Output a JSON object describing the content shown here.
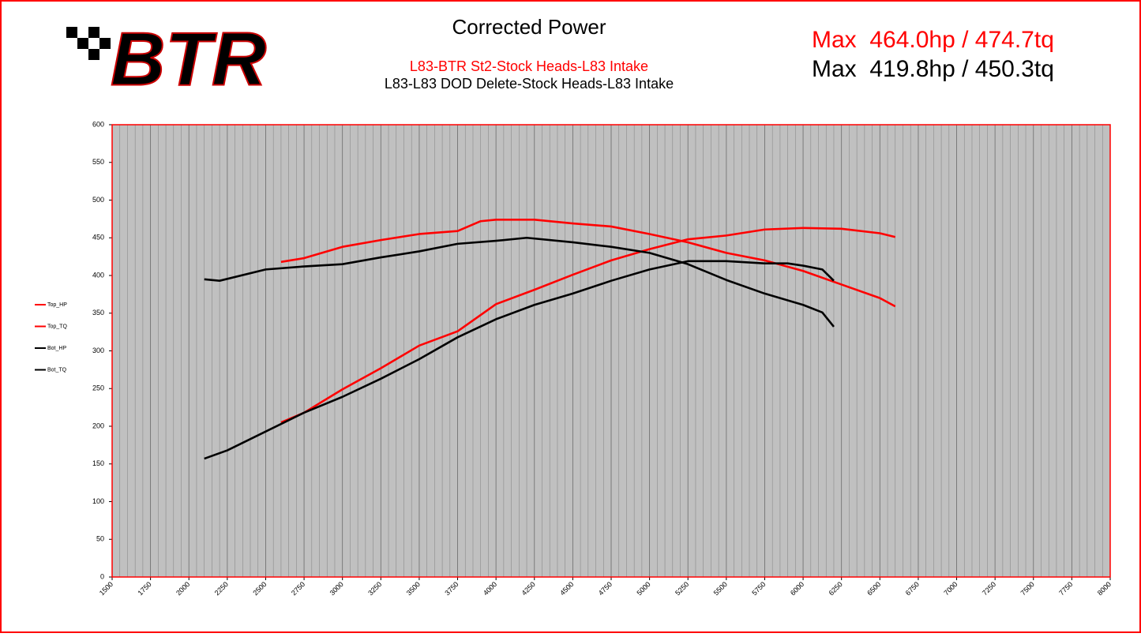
{
  "logo": "BTR",
  "chart_data": {
    "type": "line",
    "title": "Corrected Power",
    "subtitles": [
      {
        "text": "L83-BTR St2-Stock Heads-L83 Intake",
        "color": "#ff0000"
      },
      {
        "text": "L83-L83 DOD Delete-Stock Heads-L83 Intake",
        "color": "#000000"
      }
    ],
    "annotations": [
      {
        "text": "Max  464.0hp / 474.7tq",
        "color": "#ff0000"
      },
      {
        "text": "Max  419.8hp / 450.3tq",
        "color": "#000000"
      }
    ],
    "xlim": [
      1500,
      8000
    ],
    "xticks": [
      1500,
      1750,
      2000,
      2250,
      2500,
      2750,
      3000,
      3250,
      3500,
      3750,
      4000,
      4250,
      4500,
      4750,
      5000,
      5250,
      5500,
      5750,
      6000,
      6250,
      6500,
      6750,
      7000,
      7250,
      7500,
      7750,
      8000
    ],
    "x_minor_grid": 50,
    "ylim": [
      0,
      600
    ],
    "yticks": [
      0,
      50,
      100,
      150,
      200,
      250,
      300,
      350,
      400,
      450,
      500,
      550,
      600
    ],
    "grid": true,
    "legend": "left",
    "series": [
      {
        "name": "Top_HP",
        "color": "#ff0000",
        "x": [
          2600,
          2750,
          3000,
          3250,
          3500,
          3750,
          4000,
          4250,
          4500,
          4750,
          5000,
          5250,
          5500,
          5750,
          6000,
          6250,
          6500,
          6600
        ],
        "values": [
          205,
          218,
          249,
          277,
          307,
          326,
          362,
          381,
          401,
          420,
          435,
          448,
          453,
          461,
          463,
          462,
          456,
          451
        ]
      },
      {
        "name": "Top_TQ",
        "color": "#ff0000",
        "x": [
          2600,
          2750,
          3000,
          3250,
          3500,
          3750,
          3900,
          4000,
          4250,
          4500,
          4750,
          5000,
          5250,
          5500,
          5750,
          6000,
          6250,
          6500,
          6600
        ],
        "values": [
          418,
          423,
          438,
          447,
          455,
          459,
          472,
          474,
          474,
          469,
          465,
          455,
          444,
          430,
          420,
          406,
          388,
          370,
          359
        ]
      },
      {
        "name": "Bot_HP",
        "color": "#000000",
        "x": [
          2100,
          2250,
          2500,
          2750,
          3000,
          3250,
          3500,
          3750,
          4000,
          4250,
          4500,
          4750,
          5000,
          5250,
          5500,
          5750,
          5900,
          6000,
          6125,
          6200
        ],
        "values": [
          157,
          168,
          193,
          218,
          239,
          263,
          289,
          318,
          342,
          361,
          376,
          393,
          408,
          419,
          419,
          416,
          416,
          413,
          408,
          393
        ]
      },
      {
        "name": "Bot_TQ",
        "color": "#000000",
        "x": [
          2100,
          2200,
          2500,
          2750,
          3000,
          3250,
          3500,
          3750,
          4000,
          4200,
          4500,
          4750,
          5000,
          5250,
          5500,
          5750,
          6000,
          6125,
          6200
        ],
        "values": [
          395,
          393,
          408,
          412,
          415,
          424,
          432,
          442,
          446,
          450,
          444,
          438,
          430,
          415,
          394,
          376,
          361,
          351,
          332
        ]
      }
    ]
  }
}
